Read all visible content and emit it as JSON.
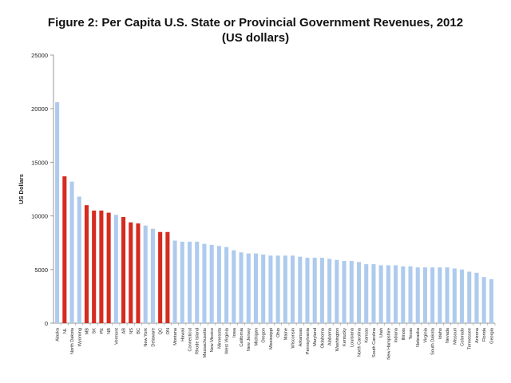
{
  "chart_data": {
    "type": "bar",
    "title": "Figure 2: Per Capita U.S. State or Provincial Government Revenues, 2012",
    "subtitle": "(US dollars)",
    "xlabel": "",
    "ylabel": "US Dollars",
    "ylim": [
      0,
      25000
    ],
    "yticks": [
      0,
      5000,
      10000,
      15000,
      20000,
      25000
    ],
    "grid": false,
    "colors": {
      "us_state": "#aecbee",
      "province": "#d62b1f",
      "axis": "#9a9a9a",
      "text": "#222222"
    },
    "categories": [
      "Alaska",
      "NL",
      "North Dakota",
      "Wyoming",
      "MB",
      "SK",
      "PE",
      "NB",
      "Vermont",
      "AB",
      "NS",
      "BC",
      "New York",
      "Delaware",
      "QC",
      "ON",
      "Montana",
      "Hawaii",
      "Connecticut",
      "Rhode Island",
      "Massachusetts",
      "New Mexico",
      "Minnesota",
      "West Virginia",
      "Iowa",
      "California",
      "New Jersey",
      "Michigan",
      "Oregon",
      "Mississippi",
      "Ohio",
      "Maine",
      "Wisconsin",
      "Arkansas",
      "Pennsylvania",
      "Maryland",
      "Oklahoma",
      "Alabama",
      "Washington",
      "Kentucky",
      "Louisiana",
      "North Carolina",
      "Kansas",
      "South Carolina",
      "Utah",
      "New Hampshire",
      "Indiana",
      "Illinois",
      "Texas",
      "Nebraska",
      "Virginia",
      "South Dakota",
      "Idaho",
      "Nevada",
      "Missouri",
      "Colorado",
      "Tennessee",
      "Arizona",
      "Florida",
      "Georgia"
    ],
    "values": [
      20600,
      13700,
      13200,
      11800,
      11000,
      10500,
      10500,
      10300,
      10100,
      9900,
      9400,
      9300,
      9100,
      8800,
      8500,
      8500,
      7700,
      7600,
      7600,
      7600,
      7400,
      7300,
      7200,
      7100,
      6800,
      6600,
      6500,
      6500,
      6400,
      6300,
      6300,
      6300,
      6300,
      6200,
      6100,
      6100,
      6100,
      6000,
      5900,
      5800,
      5800,
      5700,
      5500,
      5500,
      5400,
      5400,
      5400,
      5300,
      5300,
      5200,
      5200,
      5200,
      5200,
      5200,
      5100,
      5000,
      4800,
      4700,
      4300,
      4100
    ],
    "highlight": [
      false,
      true,
      false,
      false,
      true,
      true,
      true,
      true,
      false,
      true,
      true,
      true,
      false,
      false,
      true,
      true,
      false,
      false,
      false,
      false,
      false,
      false,
      false,
      false,
      false,
      false,
      false,
      false,
      false,
      false,
      false,
      false,
      false,
      false,
      false,
      false,
      false,
      false,
      false,
      false,
      false,
      false,
      false,
      false,
      false,
      false,
      false,
      false,
      false,
      false,
      false,
      false,
      false,
      false,
      false,
      false,
      false,
      false,
      false,
      false
    ]
  }
}
